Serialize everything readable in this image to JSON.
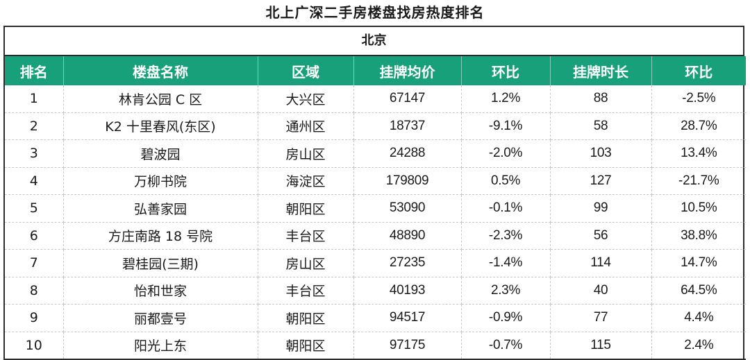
{
  "title": "北上广深二手房楼盘找房热度排名",
  "region": "北京",
  "columns": [
    "排名",
    "楼盘名称",
    "区域",
    "挂牌均价",
    "环比",
    "挂牌时长",
    "环比"
  ],
  "colors": {
    "header_bg": "#18a07a",
    "header_text": "#ffffff"
  },
  "rows": [
    [
      "1",
      "林肯公园 C 区",
      "大兴区",
      "67147",
      "1.2%",
      "88",
      "-2.5%"
    ],
    [
      "2",
      "K2 十里春风(东区)",
      "通州区",
      "18737",
      "-9.1%",
      "58",
      "28.7%"
    ],
    [
      "3",
      "碧波园",
      "房山区",
      "24288",
      "-2.0%",
      "103",
      "13.4%"
    ],
    [
      "4",
      "万柳书院",
      "海淀区",
      "179809",
      "0.5%",
      "127",
      "-21.7%"
    ],
    [
      "5",
      "弘善家园",
      "朝阳区",
      "53090",
      "-0.1%",
      "99",
      "10.5%"
    ],
    [
      "6",
      "方庄南路 18 号院",
      "丰台区",
      "48890",
      "-2.3%",
      "56",
      "38.8%"
    ],
    [
      "7",
      "碧桂园(三期)",
      "房山区",
      "27235",
      "-1.4%",
      "114",
      "14.7%"
    ],
    [
      "8",
      "怡和世家",
      "丰台区",
      "40193",
      "2.3%",
      "40",
      "64.5%"
    ],
    [
      "9",
      "丽都壹号",
      "朝阳区",
      "94517",
      "-0.9%",
      "77",
      "4.4%"
    ],
    [
      "10",
      "阳光上东",
      "朝阳区",
      "97175",
      "-0.7%",
      "115",
      "2.4%"
    ]
  ]
}
